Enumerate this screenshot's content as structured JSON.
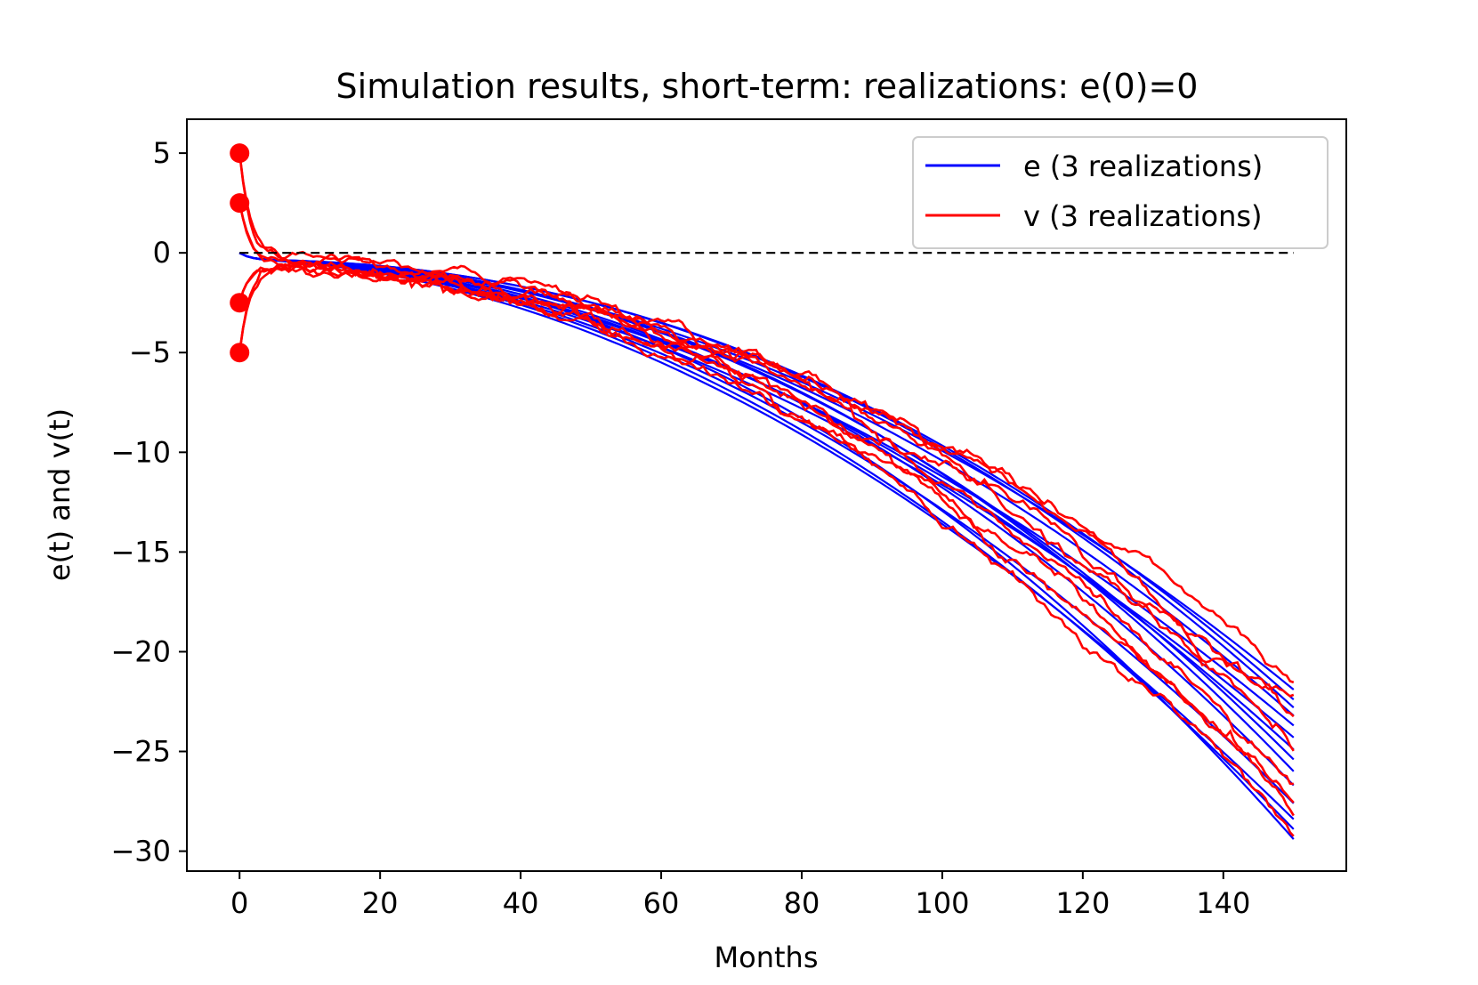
{
  "chart_data": {
    "type": "line",
    "title": "Simulation results, short-term: realizations: e(0)=0",
    "xlabel": "Months",
    "ylabel": "e(t) and v(t)",
    "xlim": [
      -7.5,
      157.5
    ],
    "ylim": [
      -31,
      6.7
    ],
    "xticks": [
      0,
      20,
      40,
      60,
      80,
      100,
      120,
      140
    ],
    "yticks": [
      5,
      0,
      -5,
      -10,
      -15,
      -20,
      -25,
      -30
    ],
    "xtick_labels": [
      "0",
      "20",
      "40",
      "60",
      "80",
      "100",
      "120",
      "140"
    ],
    "ytick_labels": [
      "5",
      "0",
      "−5",
      "−10",
      "−15",
      "−20",
      "−25",
      "−30"
    ],
    "t_max": 150,
    "legend": {
      "position": "top-right",
      "entries": [
        {
          "label": "e (3 realizations)",
          "color": "#0000ff"
        },
        {
          "label": "v (3 realizations)",
          "color": "#ff0000"
        }
      ]
    },
    "reference_line": {
      "y": 0,
      "style": "dashed",
      "color": "#000000"
    },
    "initial_v_points": [
      5,
      2.5,
      -2.5,
      -5
    ],
    "e_final_values": [
      -21.9,
      -22.4,
      -22.8,
      -23.2,
      -23.7,
      -24.3,
      -24.9,
      -25.4,
      -26.0,
      -26.7,
      -27.6,
      -28.4,
      -28.9,
      -29.4
    ],
    "v_final_values": [
      -21.3,
      -22.5,
      -23.6,
      -24.6,
      -26.6,
      -27.4,
      -28.2,
      -29.0
    ],
    "series": [
      {
        "name": "e (3 realizations)",
        "color": "#0000ff",
        "count": 14
      },
      {
        "name": "v (3 realizations)",
        "color": "#ff0000",
        "count": 8
      }
    ]
  }
}
